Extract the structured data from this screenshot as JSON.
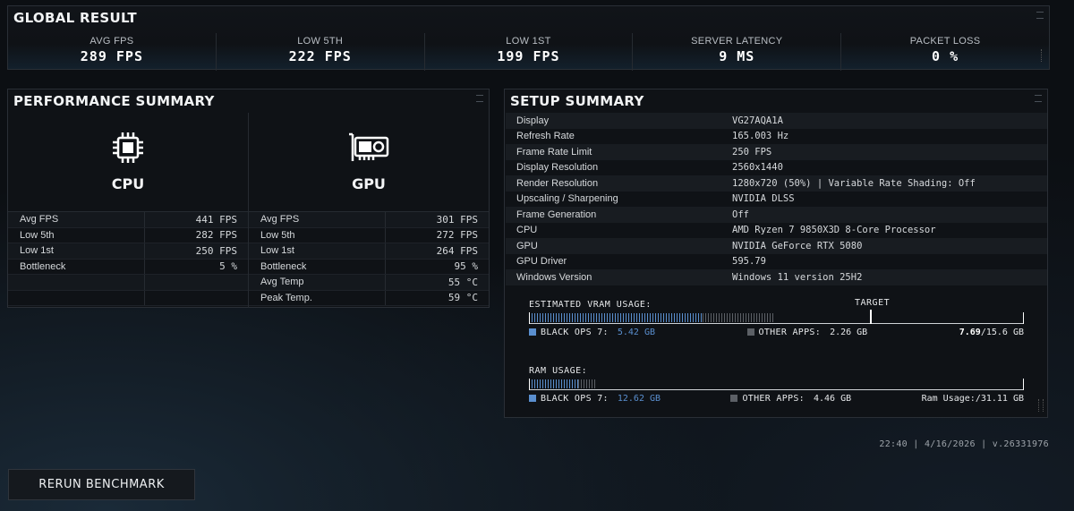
{
  "global": {
    "title": "GLOBAL RESULT",
    "stats": [
      {
        "label": "AVG FPS",
        "value": "289 FPS"
      },
      {
        "label": "LOW 5TH",
        "value": "222 FPS"
      },
      {
        "label": "LOW 1ST",
        "value": "199 FPS"
      },
      {
        "label": "SERVER LATENCY",
        "value": "9 MS"
      },
      {
        "label": "PACKET LOSS",
        "value": "0 %"
      }
    ]
  },
  "performance": {
    "title": "PERFORMANCE SUMMARY",
    "cpu": {
      "name": "CPU",
      "rows": [
        {
          "k": "Avg FPS",
          "v": "441 FPS"
        },
        {
          "k": "Low 5th",
          "v": "282 FPS"
        },
        {
          "k": "Low 1st",
          "v": "250 FPS"
        },
        {
          "k": "Bottleneck",
          "v": "5 %"
        },
        {
          "k": "",
          "v": ""
        },
        {
          "k": "",
          "v": ""
        }
      ]
    },
    "gpu": {
      "name": "GPU",
      "rows": [
        {
          "k": "Avg FPS",
          "v": "301 FPS"
        },
        {
          "k": "Low 5th",
          "v": "272 FPS"
        },
        {
          "k": "Low 1st",
          "v": "264 FPS"
        },
        {
          "k": "Bottleneck",
          "v": "95 %"
        },
        {
          "k": "Avg Temp",
          "v": "55 °C"
        },
        {
          "k": "Peak Temp.",
          "v": "59 °C"
        }
      ]
    }
  },
  "setup": {
    "title": "SETUP SUMMARY",
    "rows": [
      {
        "k": "Display",
        "v": "VG27AQA1A"
      },
      {
        "k": "Refresh Rate",
        "v": "165.003 Hz"
      },
      {
        "k": "Frame Rate Limit",
        "v": "250 FPS"
      },
      {
        "k": "Display Resolution",
        "v": "2560x1440"
      },
      {
        "k": "Render Resolution",
        "v": "1280x720 (50%) | Variable Rate Shading: Off"
      },
      {
        "k": "Upscaling / Sharpening",
        "v": "NVIDIA DLSS"
      },
      {
        "k": "Frame Generation",
        "v": "Off"
      },
      {
        "k": "CPU",
        "v": "AMD Ryzen 7 9850X3D 8-Core Processor"
      },
      {
        "k": "GPU",
        "v": "NVIDIA GeForce RTX 5080"
      },
      {
        "k": "GPU Driver",
        "v": "595.79"
      },
      {
        "k": "Windows Version",
        "v": "Windows 11 version 25H2"
      }
    ],
    "vram": {
      "title": "ESTIMATED VRAM USAGE:",
      "target_label": "TARGET",
      "game_label": "BLACK OPS 7:",
      "game_value": "5.42 GB",
      "other_label": "OTHER APPS:",
      "other_value": "2.26 GB",
      "total_used": "7.69",
      "total_cap": "/15.6 GB",
      "game_fraction": 0.35,
      "other_fraction": 0.145,
      "target_fraction": 0.695
    },
    "ram": {
      "title": "RAM USAGE:",
      "game_label": "BLACK OPS 7:",
      "game_value": "12.62 GB",
      "other_label": "OTHER APPS:",
      "other_value": "4.46 GB",
      "total_label": "Ram Usage:",
      "total_cap": "/31.11 GB",
      "game_fraction": 0.095,
      "other_fraction": 0.035
    }
  },
  "footer": {
    "timestamp": "22:40 | 4/16/2026 | v.26331976",
    "rerun_label": "RERUN BENCHMARK"
  },
  "colors": {
    "accent_blue": "#5a8fcf",
    "other_gray": "#5c6066"
  }
}
